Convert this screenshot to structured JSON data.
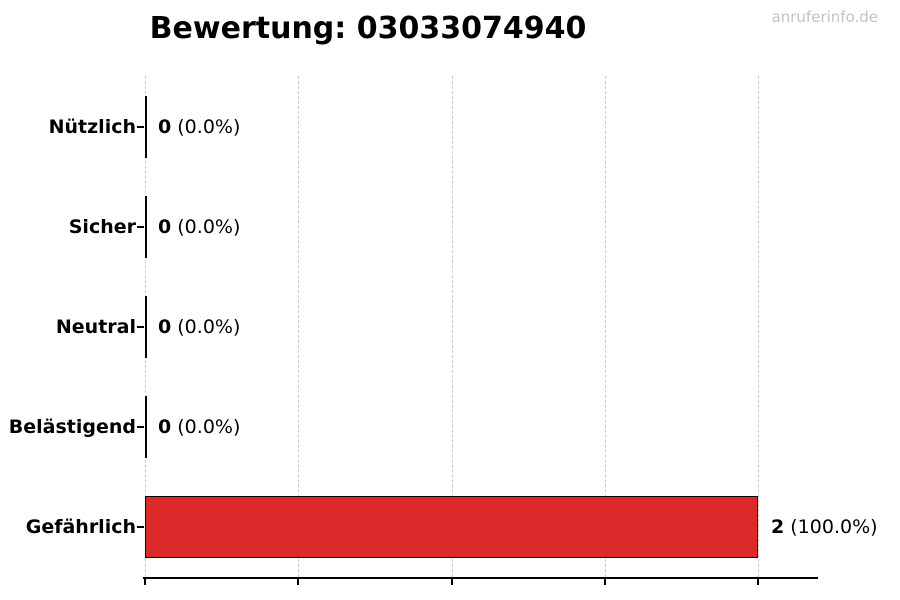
{
  "watermark": "anruferinfo.de",
  "chart_data": {
    "type": "bar",
    "orientation": "horizontal",
    "title": "Bewertung: 03033074940",
    "categories": [
      "Nützlich",
      "Sicher",
      "Neutral",
      "Belästigend",
      "Gefährlich"
    ],
    "values": [
      0,
      0,
      0,
      0,
      2
    ],
    "percent_labels": [
      "0.0%",
      "0.0%",
      "0.0%",
      "0.0%",
      "100.0%"
    ],
    "xlim": [
      0,
      2
    ],
    "x_tick_step": 0.5,
    "grid": "vertical-dashed",
    "legend": "none",
    "bar_color": "#dc2a2a",
    "bar_edge_color": "#000000",
    "grid_color": "#c9c9c9",
    "axis_color": "#000000",
    "watermark_color": "#c3c3c3"
  }
}
